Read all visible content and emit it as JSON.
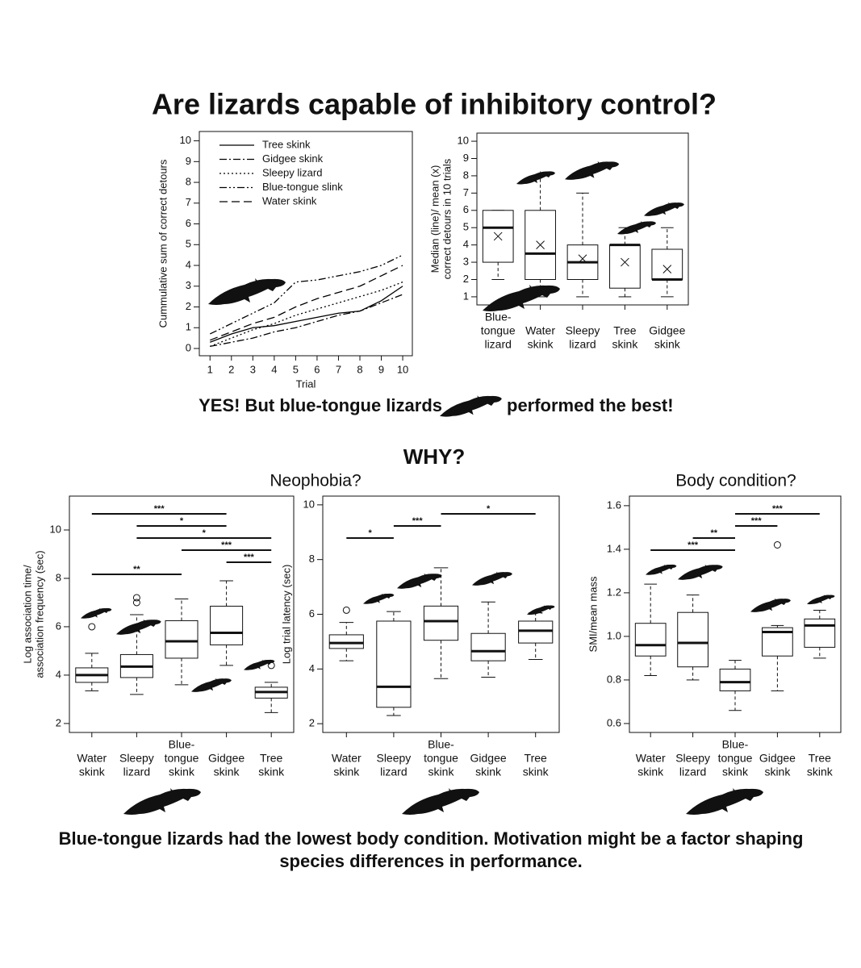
{
  "title": "Are lizards capable of inhibitory control?",
  "result": {
    "before": "YES! But blue-tongue lizards",
    "after": "performed the best!"
  },
  "why": "WHY?",
  "sections": [
    "Neophobia?",
    "Body condition?"
  ],
  "conclusion": [
    "Blue-tongue lizards had the lowest body condition. Motivation might be a factor shaping",
    "species differences in performance."
  ],
  "chart_data": [
    {
      "type": "line",
      "xlabel": "Trial",
      "ylabel": [
        "Cummulative sum of correct detours"
      ],
      "x": [
        1,
        2,
        3,
        4,
        5,
        6,
        7,
        8,
        9,
        10
      ],
      "xlim": [
        0.5,
        10.45
      ],
      "xticks": [
        1,
        2,
        3,
        4,
        5,
        6,
        7,
        8,
        9,
        10
      ],
      "ylim": [
        -0.35,
        10.45
      ],
      "yticks": [
        0,
        1,
        2,
        3,
        4,
        5,
        6,
        7,
        8,
        9,
        10
      ],
      "legend": "upper left",
      "series": [
        {
          "name": "Tree skink",
          "color": "#000000",
          "dash": "solid",
          "values": [
            0.3,
            0.7,
            1.0,
            1.1,
            1.3,
            1.5,
            1.7,
            1.8,
            2.3,
            3.0
          ]
        },
        {
          "name": "Gidgee skink",
          "color": "#000000",
          "dash": "dashdot",
          "values": [
            0.1,
            0.3,
            0.5,
            0.8,
            1.0,
            1.3,
            1.6,
            1.8,
            2.2,
            2.6
          ]
        },
        {
          "name": "Sleepy lizard",
          "color": "#000000",
          "dash": "dotted",
          "values": [
            0.1,
            0.5,
            0.9,
            1.2,
            1.6,
            1.9,
            2.2,
            2.5,
            2.8,
            3.2
          ]
        },
        {
          "name": "Blue-tongue slink",
          "color": "#000000",
          "dash": "dashdotdot",
          "values": [
            0.7,
            1.2,
            1.7,
            2.2,
            3.2,
            3.3,
            3.5,
            3.7,
            4.0,
            4.5
          ]
        },
        {
          "name": "Water skink",
          "color": "#000000",
          "dash": "dashed",
          "values": [
            0.4,
            0.8,
            1.2,
            1.5,
            2.0,
            2.4,
            2.7,
            3.0,
            3.5,
            4.0
          ]
        }
      ]
    },
    {
      "type": "box",
      "ylabel": [
        "Median (line)/ mean (x)",
        "correct detours in 10 trials"
      ],
      "categories": [
        [
          "Blue-",
          "tongue",
          "lizard"
        ],
        [
          "Water",
          "skink"
        ],
        [
          "Sleepy",
          "lizard"
        ],
        [
          "Tree",
          "skink"
        ],
        [
          "Gidgee",
          "skink"
        ]
      ],
      "ylim": [
        0.53,
        10.47
      ],
      "yticks": [
        1,
        2,
        3,
        4,
        5,
        6,
        7,
        8,
        9,
        10
      ],
      "boxes": [
        {
          "min": 2,
          "q1": 3,
          "median": 5,
          "q3": 6,
          "max": 6,
          "mean": 4.5
        },
        {
          "min": 1,
          "q1": 2,
          "median": 3.5,
          "q3": 6,
          "max": 8,
          "mean": 4
        },
        {
          "min": 1,
          "q1": 2,
          "median": 3,
          "q3": 4,
          "max": 7,
          "mean": 3.2
        },
        {
          "min": 1,
          "q1": 1.5,
          "median": 4,
          "q3": 4,
          "max": 5,
          "mean": 3
        },
        {
          "min": 1,
          "q1": 2,
          "median": 2,
          "q3": 3.75,
          "max": 5,
          "mean": 2.6
        }
      ]
    },
    {
      "type": "box",
      "ylabel": [
        "Log association time/",
        "association frequency (sec)"
      ],
      "categories": [
        [
          "Water",
          "skink"
        ],
        [
          "Sleepy",
          "lizard"
        ],
        [
          "Blue-",
          "tongue",
          "skink"
        ],
        [
          "Gidgee",
          "skink"
        ],
        [
          "Tree",
          "skink"
        ]
      ],
      "ylim": [
        1.63,
        11.4
      ],
      "yticks": [
        2,
        4,
        6,
        8,
        10
      ],
      "boxes": [
        {
          "min": 3.35,
          "q1": 3.7,
          "median": 4.0,
          "q3": 4.3,
          "max": 4.9,
          "outliers": [
            6.0
          ]
        },
        {
          "min": 3.2,
          "q1": 3.9,
          "median": 4.35,
          "q3": 4.85,
          "max": 6.5,
          "outliers": [
            7.0,
            7.2
          ]
        },
        {
          "min": 3.6,
          "q1": 4.7,
          "median": 5.4,
          "q3": 6.25,
          "max": 7.15
        },
        {
          "min": 4.4,
          "q1": 5.25,
          "median": 5.75,
          "q3": 6.85,
          "max": 7.9
        },
        {
          "min": 2.45,
          "q1": 3.05,
          "median": 3.3,
          "q3": 3.5,
          "max": 3.7,
          "outliers": [
            4.4
          ]
        }
      ],
      "annotations": [
        {
          "label": "***",
          "from": 0,
          "to": 3
        },
        {
          "label": "*",
          "from": 1,
          "to": 3
        },
        {
          "label": "*",
          "from": 1,
          "to": 4
        },
        {
          "label": "***",
          "from": 2,
          "to": 4
        },
        {
          "label": "***",
          "from": 3,
          "to": 4
        },
        {
          "label": "**",
          "from": 0,
          "to": 2
        }
      ]
    },
    {
      "type": "box",
      "ylabel": [
        "Log trial latency (sec)"
      ],
      "categories": [
        [
          "Water",
          "skink"
        ],
        [
          "Sleepy",
          "lizard"
        ],
        [
          "Blue-",
          "tongue",
          "skink"
        ],
        [
          "Gidgee",
          "skink"
        ],
        [
          "Tree",
          "skink"
        ]
      ],
      "ylim": [
        1.68,
        10.32
      ],
      "yticks": [
        2,
        4,
        6,
        8,
        10
      ],
      "boxes": [
        {
          "min": 4.3,
          "q1": 4.75,
          "median": 4.95,
          "q3": 5.25,
          "max": 5.7,
          "outliers": [
            6.15
          ]
        },
        {
          "min": 2.3,
          "q1": 2.6,
          "median": 3.35,
          "q3": 5.75,
          "max": 6.1
        },
        {
          "min": 3.65,
          "q1": 5.05,
          "median": 5.75,
          "q3": 6.3,
          "max": 7.7
        },
        {
          "min": 3.7,
          "q1": 4.3,
          "median": 4.65,
          "q3": 5.3,
          "max": 6.45
        },
        {
          "min": 4.35,
          "q1": 4.95,
          "median": 5.4,
          "q3": 5.75,
          "max": 6.05
        }
      ],
      "annotations": [
        {
          "label": "*",
          "from": 2,
          "to": 4
        },
        {
          "label": "***",
          "from": 1,
          "to": 2
        },
        {
          "label": "*",
          "from": 0,
          "to": 1
        }
      ]
    },
    {
      "type": "box",
      "ylabel": [
        "SMI/mean mass"
      ],
      "categories": [
        [
          "Water",
          "skink"
        ],
        [
          "Sleepy",
          "lizard"
        ],
        [
          "Blue-",
          "tongue",
          "skink"
        ],
        [
          "Gidgee",
          "skink"
        ],
        [
          "Tree",
          "skink"
        ]
      ],
      "ylim": [
        0.559,
        1.644
      ],
      "yticks": [
        0.6,
        0.8,
        {
          "value": 1,
          "label": "1.0"
        },
        1.2,
        1.4,
        1.6
      ],
      "boxes": [
        {
          "min": 0.82,
          "q1": 0.91,
          "median": 0.96,
          "q3": 1.06,
          "max": 1.24
        },
        {
          "min": 0.8,
          "q1": 0.86,
          "median": 0.97,
          "q3": 1.11,
          "max": 1.19
        },
        {
          "min": 0.66,
          "q1": 0.75,
          "median": 0.79,
          "q3": 0.85,
          "max": 0.89
        },
        {
          "min": 0.75,
          "q1": 0.91,
          "median": 1.02,
          "q3": 1.04,
          "max": 1.05,
          "outliers": [
            1.42
          ]
        },
        {
          "min": 0.9,
          "q1": 0.95,
          "median": 1.05,
          "q3": 1.08,
          "max": 1.12
        }
      ],
      "annotations": [
        {
          "label": "***",
          "from": 2,
          "to": 4
        },
        {
          "label": "***",
          "from": 2,
          "to": 3
        },
        {
          "label": "**",
          "from": 1,
          "to": 2
        },
        {
          "label": "***",
          "from": 0,
          "to": 2
        }
      ]
    }
  ]
}
